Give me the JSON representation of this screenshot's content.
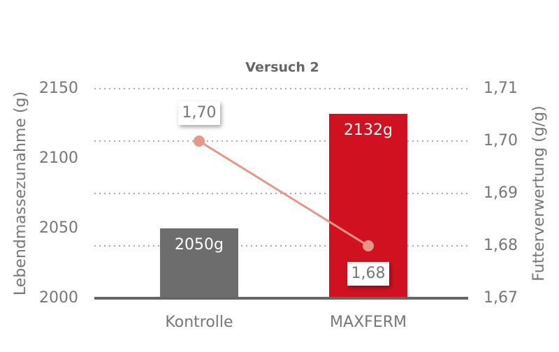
{
  "chart_data": {
    "type": "bar",
    "title": "Versuch 2",
    "categories": [
      "Kontrolle",
      "MAXFERM"
    ],
    "y_label": "Lebendmassezunahme (g)",
    "y2_label": "Futterverwertung (g/g)",
    "ylim": [
      2000,
      2150
    ],
    "yticks": [
      2000,
      2050,
      2100,
      2150
    ],
    "y2lim": [
      1.67,
      1.71
    ],
    "y2ticks": [
      {
        "value": 1.67,
        "label": "1,67"
      },
      {
        "value": 1.68,
        "label": "1,68"
      },
      {
        "value": 1.69,
        "label": "1,69"
      },
      {
        "value": 1.7,
        "label": "1,70"
      },
      {
        "value": 1.71,
        "label": "1,71"
      }
    ],
    "grid": true,
    "series": [
      {
        "type": "bar",
        "values": [
          2050,
          2132
        ],
        "value_labels": [
          "2050g",
          "2132g"
        ],
        "colors": [
          "#6d6d6d",
          "#d0111f"
        ]
      },
      {
        "type": "line",
        "axis": "y2",
        "values": [
          1.7,
          1.68
        ],
        "value_labels": [
          "1,70",
          "1,68"
        ],
        "color": "#e8968a"
      }
    ]
  }
}
